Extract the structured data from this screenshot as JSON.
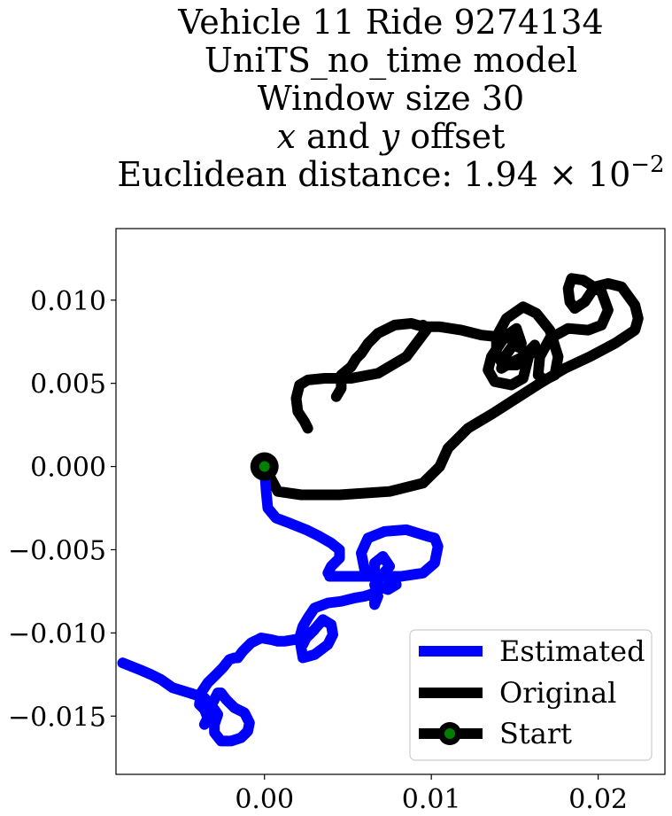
{
  "chart_data": {
    "type": "line",
    "title_lines": {
      "l1": "Vehicle 11 Ride 9274134",
      "l2": "UniTS_no_time model",
      "l3": "Window size 30",
      "l4_x": "x",
      "l4_and": "and",
      "l4_y": "y",
      "l4_rest": "offset",
      "l5_prefix": "Euclidean distance: 1.94",
      "l5_times": "×",
      "l5_base": "10",
      "l5_exp": "−2"
    },
    "xlim": [
      -0.0089,
      0.024
    ],
    "ylim": [
      -0.0185,
      0.0143
    ],
    "xticks": [
      0.0,
      0.01,
      0.02
    ],
    "xtick_labels": [
      "0.00",
      "0.01",
      "0.02"
    ],
    "yticks": [
      0.01,
      0.005,
      0.0,
      -0.005,
      -0.01,
      -0.015
    ],
    "ytick_labels": [
      "0.010",
      "0.005",
      "0.000",
      "−0.005",
      "−0.010",
      "−0.015"
    ],
    "grid": false,
    "legend_placement": "lower-right",
    "legend": [
      "Estimated",
      "Original",
      "Start"
    ],
    "colors": {
      "estimated": "#0000ff",
      "original": "#000000",
      "start_face": "#008000",
      "start_edge": "#000000"
    },
    "start_point": {
      "x": 0.0,
      "y": 0.0
    },
    "series": [
      {
        "name": "Estimated",
        "x": [
          0.0,
          0.0001,
          0.0002,
          0.0007,
          0.0015,
          0.0025,
          0.0033,
          0.004,
          0.0045,
          0.0045,
          0.004,
          0.0038,
          0.004,
          0.0039,
          0.0055,
          0.007,
          0.0082,
          0.0095,
          0.0102,
          0.0104,
          0.0102,
          0.0098,
          0.0085,
          0.0072,
          0.0062,
          0.0058,
          0.006,
          0.0068,
          0.0075,
          0.0071,
          0.0066,
          0.0066,
          0.0072,
          0.0079,
          0.0074,
          0.0066,
          0.0068,
          0.0066,
          0.0066,
          0.006,
          0.0054,
          0.0046,
          0.0038,
          0.003,
          0.0026,
          0.0023,
          0.0021,
          0.0023,
          0.003,
          0.0038,
          0.0041,
          0.004,
          0.0035,
          0.0029,
          0.0024,
          0.0023,
          0.0026,
          0.003,
          0.0026,
          0.0018,
          0.0012,
          0.0008,
          0.0004,
          -0.0002,
          -0.0008,
          -0.0013,
          -0.0016,
          -0.0018,
          -0.0021,
          -0.0025,
          -0.003,
          -0.0034,
          -0.0038,
          -0.0039,
          -0.0036,
          -0.0034,
          -0.0036,
          -0.0034,
          -0.0031,
          -0.0028,
          -0.0026,
          -0.0023,
          -0.0018,
          -0.0012,
          -0.0009,
          -0.001,
          -0.0014,
          -0.002,
          -0.0026,
          -0.003,
          -0.003,
          -0.0028,
          -0.003,
          -0.0036,
          -0.0045,
          -0.0055,
          -0.0062,
          -0.0068,
          -0.0075,
          -0.0085
        ],
        "y": [
          0.0,
          -0.0015,
          -0.0025,
          -0.0031,
          -0.0034,
          -0.0038,
          -0.0042,
          -0.0046,
          -0.005,
          -0.0055,
          -0.006,
          -0.0064,
          -0.0066,
          -0.0066,
          -0.0066,
          -0.0066,
          -0.0066,
          -0.0064,
          -0.0058,
          -0.0048,
          -0.0043,
          -0.0042,
          -0.0038,
          -0.0039,
          -0.0043,
          -0.0052,
          -0.0062,
          -0.0068,
          -0.006,
          -0.0054,
          -0.0058,
          -0.0066,
          -0.0066,
          -0.0071,
          -0.0074,
          -0.0071,
          -0.0078,
          -0.0083,
          -0.0076,
          -0.0078,
          -0.0079,
          -0.0081,
          -0.0082,
          -0.0085,
          -0.0091,
          -0.0096,
          -0.0103,
          -0.0115,
          -0.0113,
          -0.0107,
          -0.0101,
          -0.0095,
          -0.0092,
          -0.0099,
          -0.0104,
          -0.0107,
          -0.0101,
          -0.0098,
          -0.0102,
          -0.0104,
          -0.0105,
          -0.0105,
          -0.0104,
          -0.0103,
          -0.0106,
          -0.0111,
          -0.0115,
          -0.0115,
          -0.0116,
          -0.0121,
          -0.0126,
          -0.013,
          -0.0136,
          -0.0143,
          -0.0146,
          -0.0151,
          -0.0155,
          -0.0152,
          -0.0142,
          -0.0136,
          -0.0136,
          -0.014,
          -0.0145,
          -0.0148,
          -0.0154,
          -0.0159,
          -0.0163,
          -0.0165,
          -0.0165,
          -0.016,
          -0.0155,
          -0.0149,
          -0.0146,
          -0.0139,
          -0.0136,
          -0.0133,
          -0.0128,
          -0.0125,
          -0.0122,
          -0.0118
        ]
      },
      {
        "name": "Original",
        "x": [
          0.0,
          0.0008,
          0.0022,
          0.0045,
          0.0075,
          0.0095,
          0.0105,
          0.011,
          0.0122,
          0.0137,
          0.0151,
          0.0165,
          0.018,
          0.0195,
          0.021,
          0.0222,
          0.0224,
          0.0222,
          0.0214,
          0.0206,
          0.0198,
          0.0192,
          0.0186,
          0.0183,
          0.0182,
          0.0184,
          0.0191,
          0.0202,
          0.0206,
          0.0202,
          0.0194,
          0.0182,
          0.0171,
          0.0165,
          0.0164,
          0.0168,
          0.0174,
          0.0176,
          0.0171,
          0.0163,
          0.0155,
          0.0145,
          0.0139,
          0.0139,
          0.0143,
          0.0151,
          0.016,
          0.0162,
          0.0155,
          0.0147,
          0.0142,
          0.0144,
          0.0149,
          0.0154,
          0.0158,
          0.0155,
          0.0148,
          0.0138,
          0.0134,
          0.0136,
          0.0144,
          0.0151,
          0.0154,
          0.0153,
          0.0148,
          0.014,
          0.013,
          0.0118,
          0.0105,
          0.0095,
          0.0088,
          0.0078,
          0.0068,
          0.0062,
          0.0058,
          0.0055,
          0.0052,
          0.0046,
          0.0046,
          0.0043
        ],
        "y": [
          0.0,
          -0.0015,
          -0.0017,
          -0.0017,
          -0.0015,
          -0.001,
          0.0,
          0.0011,
          0.0023,
          0.0032,
          0.0041,
          0.005,
          0.0059,
          0.0066,
          0.0074,
          0.0082,
          0.0089,
          0.0097,
          0.0108,
          0.011,
          0.0108,
          0.0099,
          0.0095,
          0.0099,
          0.0107,
          0.0113,
          0.0112,
          0.0105,
          0.0094,
          0.0085,
          0.0082,
          0.0083,
          0.0077,
          0.0066,
          0.0055,
          0.0052,
          0.0055,
          0.0066,
          0.0082,
          0.0092,
          0.0096,
          0.0089,
          0.0078,
          0.0068,
          0.0061,
          0.0061,
          0.0068,
          0.0073,
          0.0066,
          0.0062,
          0.0059,
          0.0066,
          0.0073,
          0.0071,
          0.0065,
          0.0053,
          0.0049,
          0.0051,
          0.0058,
          0.0066,
          0.0078,
          0.0083,
          0.0074,
          0.0076,
          0.0077,
          0.0078,
          0.0079,
          0.0082,
          0.0084,
          0.0084,
          0.0086,
          0.0085,
          0.008,
          0.0074,
          0.0068,
          0.0065,
          0.006,
          0.0055,
          0.0047,
          0.0042
        ]
      },
      {
        "name": "Original",
        "x": [
          0.0095,
          0.0097,
          0.0085,
          0.0068,
          0.0052,
          0.0036,
          0.0026,
          0.0021,
          0.0019,
          0.002,
          0.0024,
          0.0026
        ],
        "y": [
          0.0085,
          0.0082,
          0.0066,
          0.0056,
          0.0053,
          0.0053,
          0.0052,
          0.0049,
          0.0041,
          0.0033,
          0.0027,
          0.0023
        ]
      }
    ]
  }
}
